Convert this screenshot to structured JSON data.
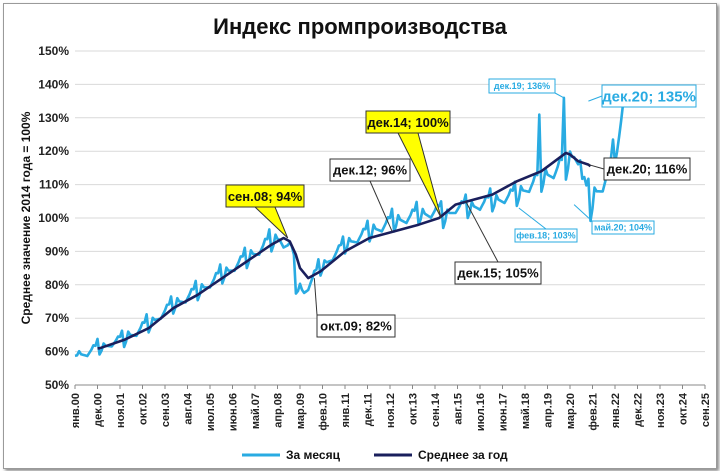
{
  "colors": {
    "monthly": "#29ABE2",
    "annual": "#1A1F5C",
    "grid": "#D9D9D9",
    "highlight": "#FFFF00",
    "callout_border": "#333333"
  },
  "chart_data": {
    "type": "line",
    "title": "Индекс промпроизводства",
    "ylabel": "Среднее значение 2014 года = 100%",
    "xlabel": "",
    "ylim": [
      50,
      150
    ],
    "y_ticks": [
      "50%",
      "60%",
      "70%",
      "80%",
      "90%",
      "100%",
      "110%",
      "120%",
      "130%",
      "140%",
      "150%"
    ],
    "x_ticks": [
      "янв.00",
      "дек.00",
      "ноя.01",
      "окт.02",
      "сен.03",
      "авг.04",
      "июл.05",
      "июн.06",
      "май.07",
      "апр.08",
      "мар.09",
      "фев.10",
      "янв.11",
      "дек.11",
      "ноя.12",
      "окт.13",
      "сен.14",
      "авг.15",
      "июл.16",
      "июн.17",
      "май.18",
      "апр.19",
      "мар.20",
      "фев.21",
      "янв.22",
      "дек.22",
      "ноя.23",
      "окт.24",
      "сен.25"
    ],
    "grid": "horizontal",
    "legend_position": "bottom",
    "series": [
      {
        "name": "За месяц",
        "anchors": [
          [
            0,
            61
          ],
          [
            2,
            59
          ],
          [
            12,
            61
          ],
          [
            24,
            64
          ],
          [
            36,
            68
          ],
          [
            48,
            74
          ],
          [
            60,
            78
          ],
          [
            72,
            83
          ],
          [
            84,
            88
          ],
          [
            96,
            93
          ],
          [
            100,
            94
          ],
          [
            106,
            90
          ],
          [
            108,
            80
          ],
          [
            112,
            78
          ],
          [
            120,
            85
          ],
          [
            132,
            92
          ],
          [
            144,
            96
          ],
          [
            156,
            99
          ],
          [
            168,
            101
          ],
          [
            178,
            102
          ],
          [
            180,
            100
          ],
          [
            186,
            103
          ],
          [
            192,
            103
          ],
          [
            204,
            105
          ],
          [
            216,
            107
          ],
          [
            228,
            112
          ],
          [
            240,
            116
          ],
          [
            241,
            117
          ],
          [
            244,
            119
          ],
          [
            247,
            118
          ],
          [
            248,
            111
          ],
          [
            252,
            104
          ],
          [
            255,
            108
          ],
          [
            260,
            112
          ],
          [
            263,
            117
          ],
          [
            266,
            123
          ],
          [
            268,
            135
          ]
        ],
        "yearly_amplitude": [
          6,
          5,
          7,
          6,
          7,
          7,
          7,
          8,
          8,
          7,
          6,
          7,
          8,
          8,
          8,
          8,
          8,
          8,
          9,
          11,
          12,
          13,
          7
        ],
        "spikes": [
          [
            227,
            131
          ],
          [
            239,
            136
          ]
        ]
      },
      {
        "name": "Среднее за год",
        "points": [
          [
            11,
            61
          ],
          [
            12,
            61
          ],
          [
            24,
            63.5
          ],
          [
            36,
            67
          ],
          [
            48,
            73
          ],
          [
            60,
            77
          ],
          [
            72,
            82
          ],
          [
            84,
            87
          ],
          [
            96,
            92
          ],
          [
            102,
            94
          ],
          [
            105,
            93
          ],
          [
            108,
            89
          ],
          [
            110,
            85
          ],
          [
            114,
            82
          ],
          [
            120,
            84
          ],
          [
            132,
            90
          ],
          [
            144,
            94
          ],
          [
            156,
            96
          ],
          [
            168,
            98
          ],
          [
            178,
            100
          ],
          [
            180,
            101
          ],
          [
            186,
            104
          ],
          [
            192,
            105
          ],
          [
            204,
            107
          ],
          [
            216,
            111
          ],
          [
            228,
            114
          ],
          [
            240,
            119.5
          ],
          [
            242,
            119
          ],
          [
            246,
            117
          ],
          [
            251,
            116
          ],
          [
            252,
            115.5
          ]
        ]
      }
    ],
    "annotations": [
      {
        "text": "сен.08; 94%",
        "x": 104,
        "y": 94,
        "style": "yellow"
      },
      {
        "text": "дек.14; 100%",
        "x": 179,
        "y": 100,
        "style": "yellow"
      },
      {
        "text": "дек.12; 96%",
        "x": 155,
        "y": 96,
        "style": "box"
      },
      {
        "text": "окт.09; 82%",
        "x": 117,
        "y": 82,
        "style": "box"
      },
      {
        "text": "дек.15; 105%",
        "x": 191,
        "y": 105,
        "style": "box"
      },
      {
        "text": "дек.20; 116%",
        "x": 251,
        "y": 116,
        "style": "box"
      },
      {
        "text": "дек.19; 136%",
        "x": 239,
        "y": 136,
        "style": "blue-small"
      },
      {
        "text": "дек.20; 135%",
        "x": 251,
        "y": 135,
        "style": "blue-big"
      },
      {
        "text": "фев.18; 103%",
        "x": 217,
        "y": 103,
        "style": "blue-small"
      },
      {
        "text": "май.20; 104%",
        "x": 244,
        "y": 104,
        "style": "blue-small"
      }
    ]
  }
}
